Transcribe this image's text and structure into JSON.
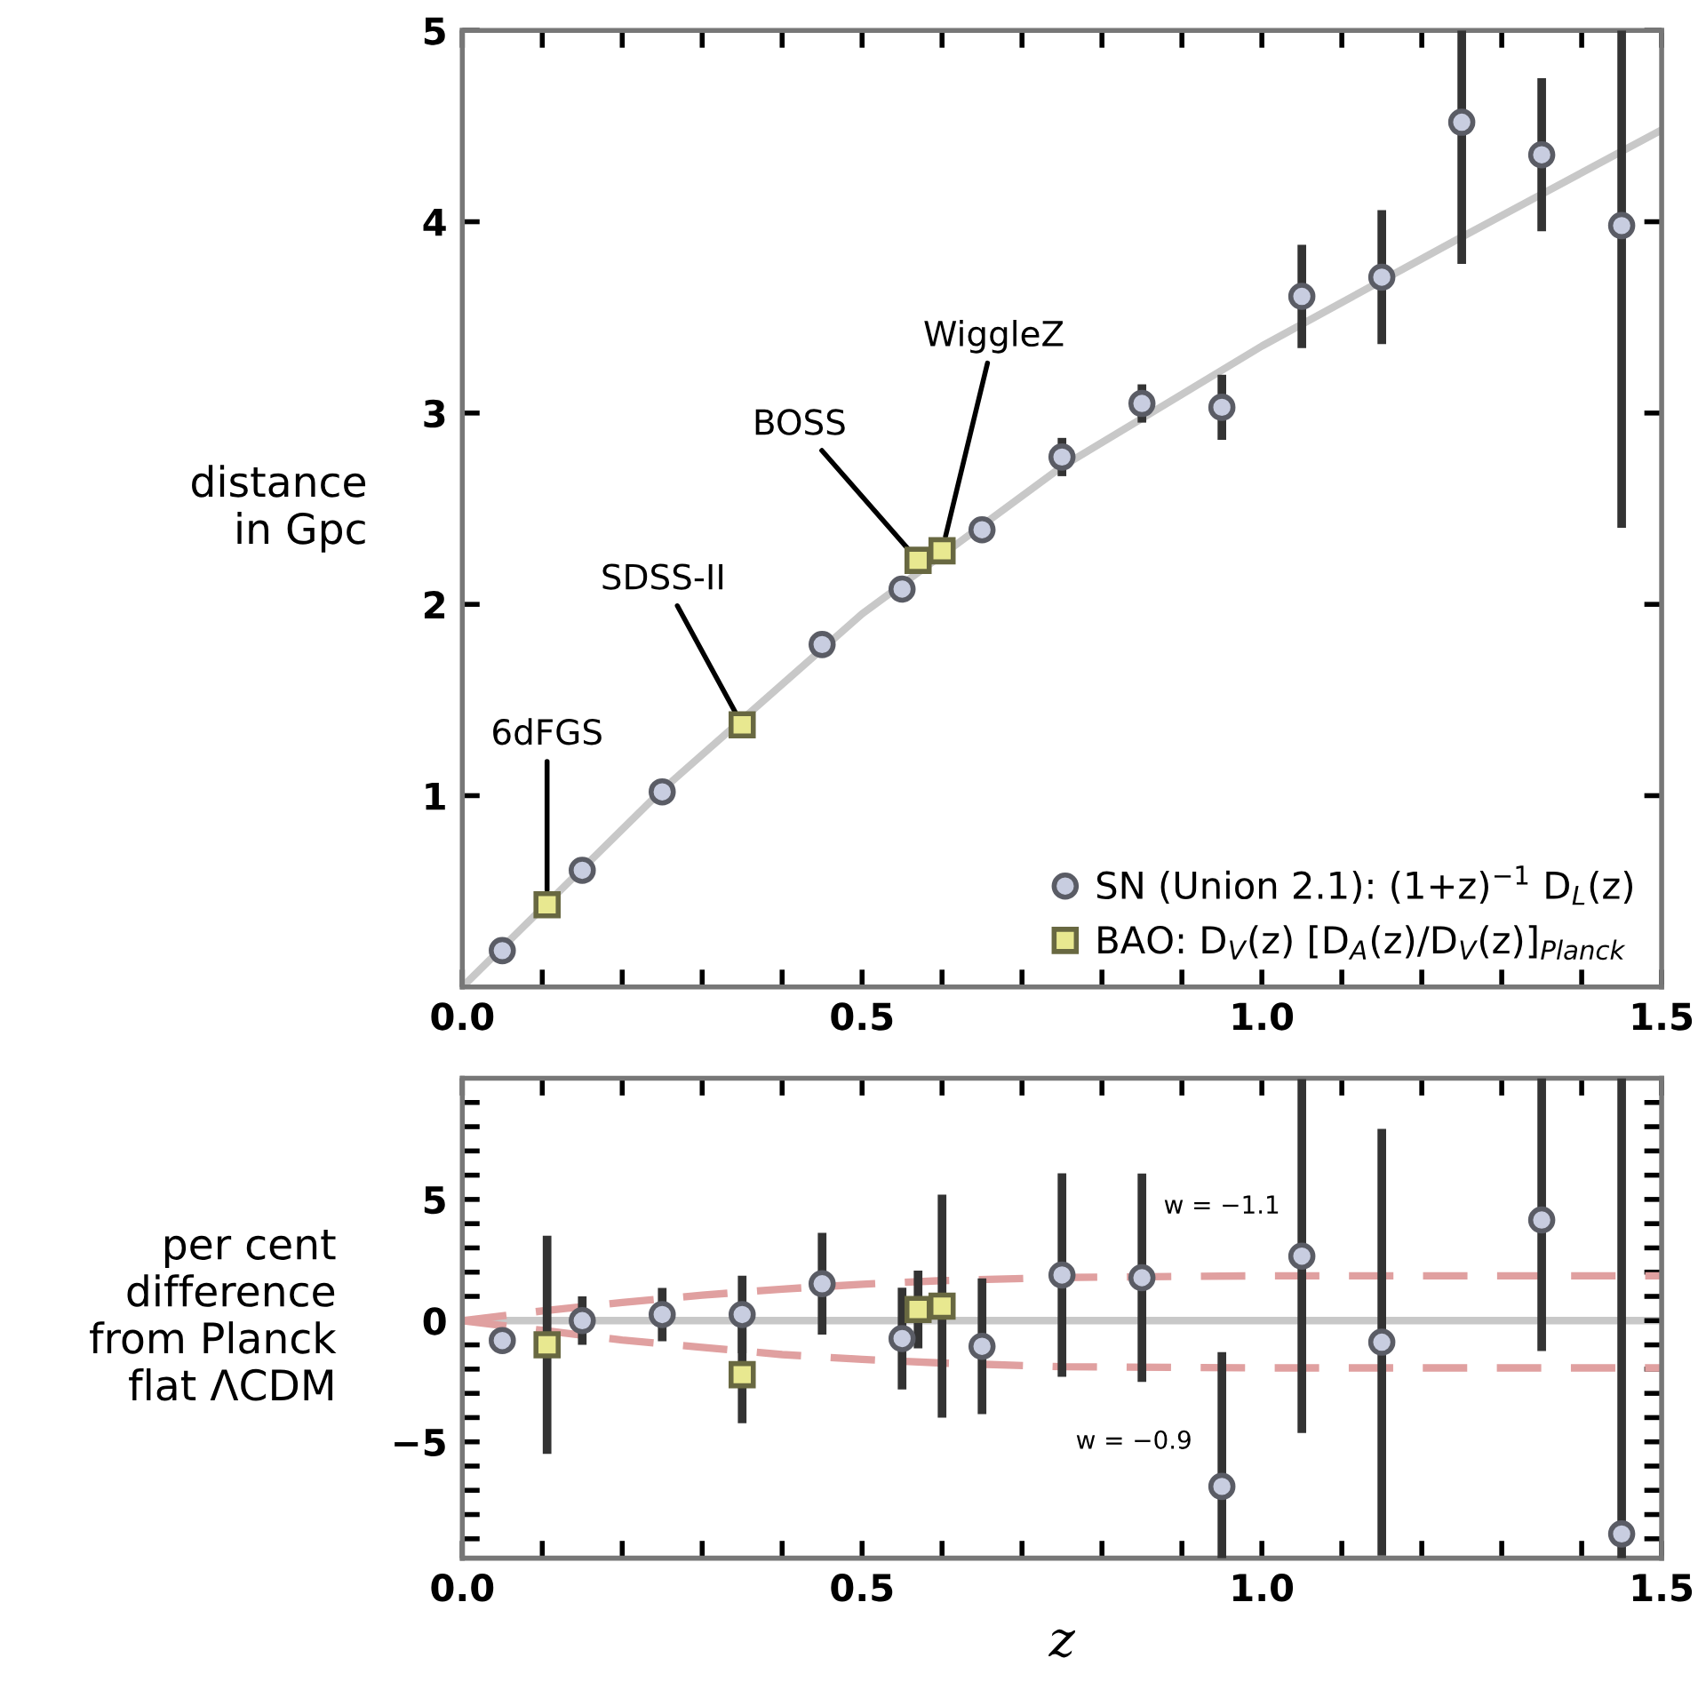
{
  "chart_data": [
    {
      "type": "scatter",
      "ylabel": "distance\nin Gpc",
      "xlim": [
        0,
        1.5
      ],
      "ylim": [
        0,
        5
      ],
      "xticks": [
        {
          "value": 0,
          "label": "0.0"
        },
        {
          "value": 0.1,
          "label": null
        },
        {
          "value": 0.2,
          "label": null
        },
        {
          "value": 0.3,
          "label": null
        },
        {
          "value": 0.4,
          "label": null
        },
        {
          "value": 0.5,
          "label": "0.5"
        },
        {
          "value": 0.6,
          "label": null
        },
        {
          "value": 0.7,
          "label": null
        },
        {
          "value": 0.8,
          "label": null
        },
        {
          "value": 0.9,
          "label": null
        },
        {
          "value": 1.0,
          "label": "1.0"
        },
        {
          "value": 1.1,
          "label": null
        },
        {
          "value": 1.2,
          "label": null
        },
        {
          "value": 1.3,
          "label": null
        },
        {
          "value": 1.4,
          "label": null
        },
        {
          "value": 1.5,
          "label": "1.5"
        }
      ],
      "yticks": [
        1,
        2,
        3,
        4,
        5
      ],
      "legend": "bottom right",
      "series": [
        {
          "type": "line",
          "color": "#c8c8c8",
          "marker": "none",
          "line_style": "solid",
          "x": [
            0,
            0.25,
            0.5,
            0.75,
            1.0,
            1.25,
            1.5
          ],
          "values": [
            0,
            1.03,
            1.95,
            2.72,
            3.35,
            3.92,
            4.48
          ]
        },
        {
          "name": "SN (Union 2.1): (1+z)$^{−1}$ D$_{L}$(z)",
          "color": "#c8cde0",
          "marker": "circle",
          "x": [
            0.05,
            0.15,
            0.25,
            0.45,
            0.55,
            0.65,
            0.75,
            0.85,
            0.95,
            1.05,
            1.15,
            1.25,
            1.35,
            1.45
          ],
          "values": [
            0.19,
            0.61,
            1.02,
            1.79,
            2.08,
            2.39,
            2.77,
            3.05,
            3.03,
            3.61,
            3.71,
            4.52,
            4.35,
            3.98
          ],
          "errors": [
            null,
            null,
            null,
            null,
            null,
            null,
            0.1,
            0.1,
            0.17,
            0.27,
            0.35,
            [
              3.78,
              5.0
            ],
            0.4,
            [
              2.4,
              5.0
            ]
          ]
        },
        {
          "name": "BAO: D$_{V}$(z) [D$_{A}$(z)/D$_{V}$(z)]$_{Planck}$",
          "color": "#e8e890",
          "marker": "square",
          "x": [
            0.106,
            0.35,
            0.57,
            0.6
          ],
          "values": [
            0.43,
            1.37,
            2.23,
            2.28
          ]
        }
      ],
      "annotations": [
        {
          "text": "6dFGS",
          "x": 0.106,
          "y": 0.43
        },
        {
          "text": "SDSS-II",
          "x": 0.35,
          "y": 1.37
        },
        {
          "text": "BOSS",
          "x": 0.57,
          "y": 2.23
        },
        {
          "text": "WiggleZ",
          "x": 0.6,
          "y": 2.28
        }
      ]
    },
    {
      "type": "scatter",
      "xlabel": "z",
      "ylabel": "per cent\ndifference\nfrom Planck\nflat ΛCDM",
      "xlim": [
        0,
        1.5
      ],
      "ylim": [
        -9.8,
        10
      ],
      "xticks": [
        {
          "value": 0,
          "label": "0.0"
        },
        {
          "value": 0.1,
          "label": null
        },
        {
          "value": 0.2,
          "label": null
        },
        {
          "value": 0.3,
          "label": null
        },
        {
          "value": 0.4,
          "label": null
        },
        {
          "value": 0.5,
          "label": "0.5"
        },
        {
          "value": 0.6,
          "label": null
        },
        {
          "value": 0.7,
          "label": null
        },
        {
          "value": 0.8,
          "label": null
        },
        {
          "value": 0.9,
          "label": null
        },
        {
          "value": 1.0,
          "label": "1.0"
        },
        {
          "value": 1.1,
          "label": null
        },
        {
          "value": 1.2,
          "label": null
        },
        {
          "value": 1.3,
          "label": null
        },
        {
          "value": 1.4,
          "label": null
        },
        {
          "value": 1.5,
          "label": "1.5"
        }
      ],
      "yticks": [
        {
          "value": -9,
          "label": null
        },
        {
          "value": -8,
          "label": null
        },
        {
          "value": -7,
          "label": null
        },
        {
          "value": -6,
          "label": null
        },
        {
          "value": -5,
          "label": "−5"
        },
        {
          "value": -4,
          "label": null
        },
        {
          "value": -3,
          "label": null
        },
        {
          "value": -2,
          "label": null
        },
        {
          "value": -1,
          "label": null
        },
        0,
        {
          "value": 1,
          "label": null
        },
        {
          "value": 2,
          "label": null
        },
        {
          "value": 3,
          "label": null
        },
        {
          "value": 4,
          "label": null
        },
        5,
        {
          "value": 6,
          "label": null
        },
        {
          "value": 7,
          "label": null
        },
        {
          "value": 8,
          "label": null
        },
        {
          "value": 9,
          "label": null
        }
      ],
      "ref_lines": [
        {
          "axis": "y",
          "value": 0,
          "color": "#c8c8c8",
          "line_style": "solid"
        }
      ],
      "series": [
        {
          "type": "line",
          "color": "#e0a0a0",
          "marker": "none",
          "line_style": "dashed",
          "x": [
            0,
            0.1,
            0.2,
            0.3,
            0.4,
            0.5,
            0.6,
            0.75,
            1.0,
            1.25,
            1.5
          ],
          "values": [
            0,
            0.4,
            0.75,
            1.05,
            1.3,
            1.5,
            1.65,
            1.78,
            1.85,
            1.85,
            1.85
          ]
        },
        {
          "type": "line",
          "color": "#e0a0a0",
          "marker": "none",
          "line_style": "dashed",
          "x": [
            0,
            0.1,
            0.2,
            0.3,
            0.4,
            0.5,
            0.6,
            0.75,
            1.0,
            1.25,
            1.5
          ],
          "values": [
            0,
            -0.4,
            -0.8,
            -1.1,
            -1.4,
            -1.6,
            -1.75,
            -1.9,
            -1.95,
            -1.95,
            -1.95
          ]
        },
        {
          "color": "#c8cde0",
          "marker": "circle",
          "x": [
            0.05,
            0.15,
            0.25,
            0.35,
            0.45,
            0.55,
            0.65,
            0.75,
            0.85,
            0.95,
            1.05,
            1.15,
            1.25,
            1.35,
            1.45
          ],
          "values": [
            -0.82,
            0.0,
            0.25,
            0.25,
            1.52,
            -0.74,
            -1.06,
            1.88,
            1.77,
            -6.84,
            2.66,
            -0.89,
            null,
            4.15,
            -8.8
          ],
          "errors": [
            null,
            1.0,
            1.1,
            1.6,
            2.1,
            2.1,
            2.8,
            4.2,
            4.3,
            [
              -9.8,
              -1.3
            ],
            7.3,
            8.8,
            null,
            [
              -1.25,
              10
            ],
            [
              -9.8,
              10
            ]
          ]
        },
        {
          "color": "#e8e890",
          "marker": "square",
          "x": [
            0.106,
            0.35,
            0.57,
            0.6
          ],
          "values": [
            -1.0,
            -2.23,
            0.46,
            0.6
          ],
          "errors": [
            4.5,
            2.0,
            1.6,
            4.6
          ]
        }
      ],
      "annotations": [
        {
          "text": "w = −1.1",
          "x": 0.95,
          "y": 1.85
        },
        {
          "text": "w = −0.9",
          "x": 0.84,
          "y": -1.95
        }
      ]
    }
  ]
}
